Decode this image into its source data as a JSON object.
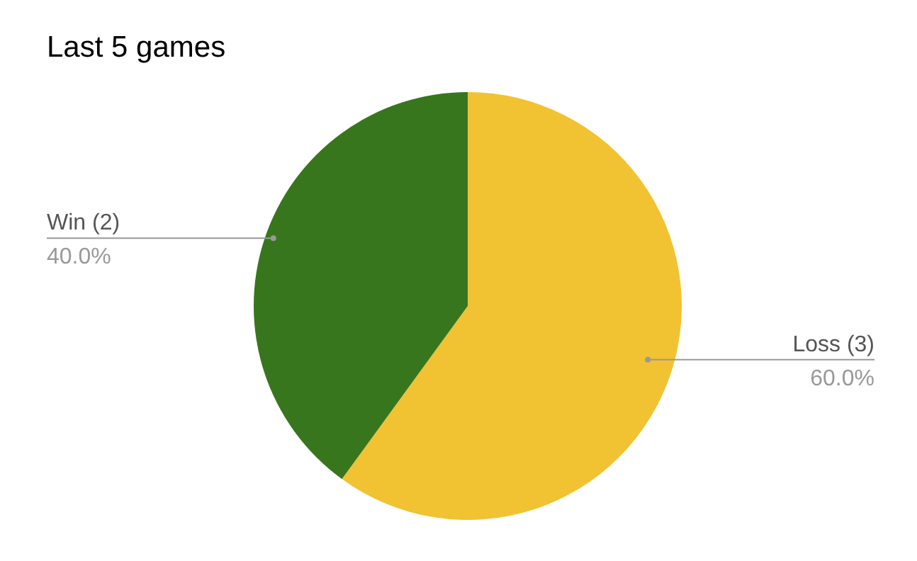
{
  "chart_data": {
    "type": "pie",
    "title": "Last 5 games",
    "categories": [
      "Loss (3)",
      "Win (2)"
    ],
    "values": [
      60,
      40
    ],
    "colors": [
      "#f1c232",
      "#38761d"
    ],
    "value_labels": [
      "60.0%",
      "40.0%"
    ]
  }
}
